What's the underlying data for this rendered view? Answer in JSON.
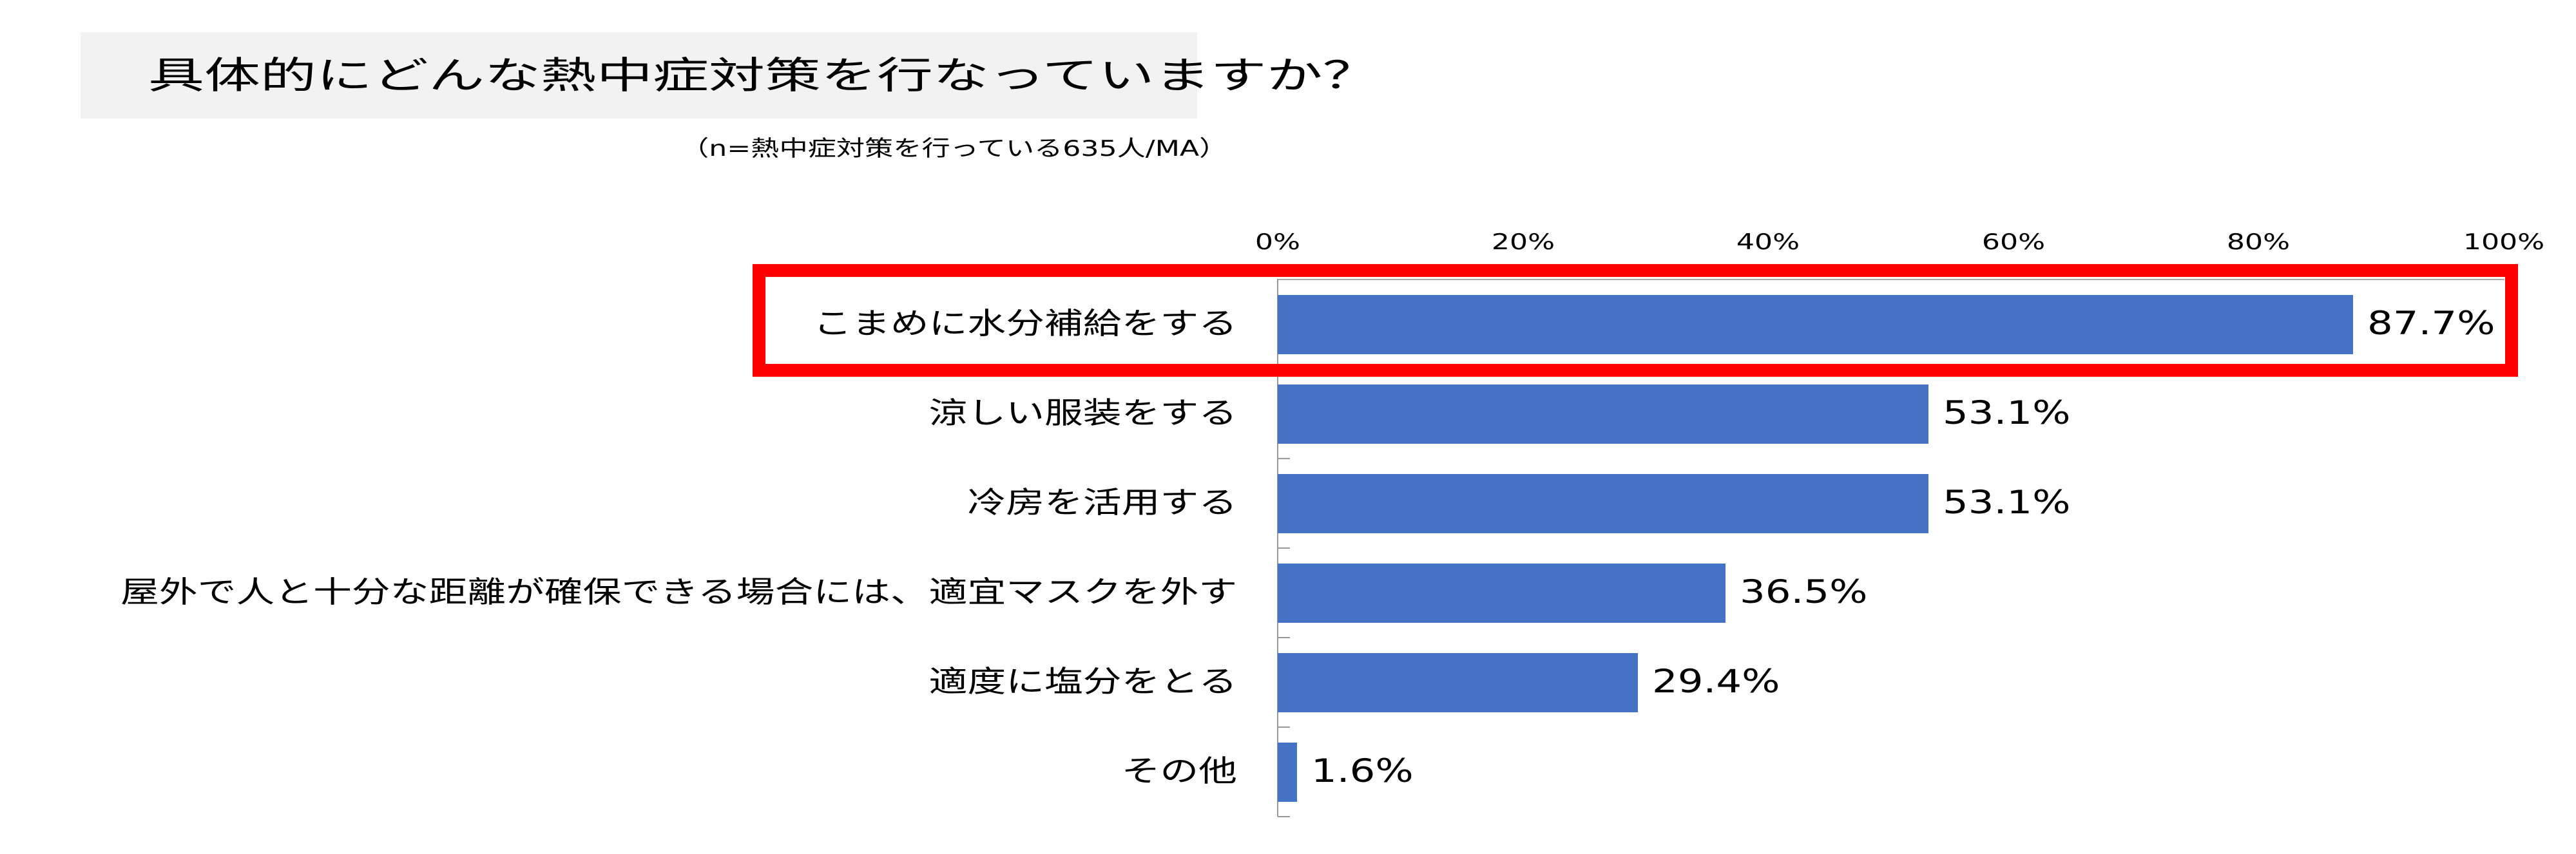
{
  "chart_data": {
    "type": "bar",
    "orientation": "horizontal",
    "title": "具体的にどんな熱中症対策を行なっていますか？",
    "subtitle": "（n=熱中症対策を行っている635人/MA）",
    "categories": [
      "こまめに水分補給をする",
      "涼しい服装をする",
      "冷房を活用する",
      "屋外で人と十分な距離が確保できる場合には、適宜マスクを外す",
      "適度に塩分をとる",
      "その他"
    ],
    "values": [
      87.7,
      53.1,
      53.1,
      36.5,
      29.4,
      1.6
    ],
    "value_labels": [
      "87.7%",
      "53.1%",
      "53.1%",
      "36.5%",
      "29.4%",
      "1.6%"
    ],
    "xlim": [
      0,
      100
    ],
    "x_ticks": [
      "0%",
      "20%",
      "40%",
      "60%",
      "80%",
      "100%"
    ],
    "xlabel": "",
    "ylabel": "",
    "bar_color": "#4472c4",
    "highlight_color": "#ff0000",
    "highlighted_category": "こまめに水分補給をする",
    "grid": false
  }
}
